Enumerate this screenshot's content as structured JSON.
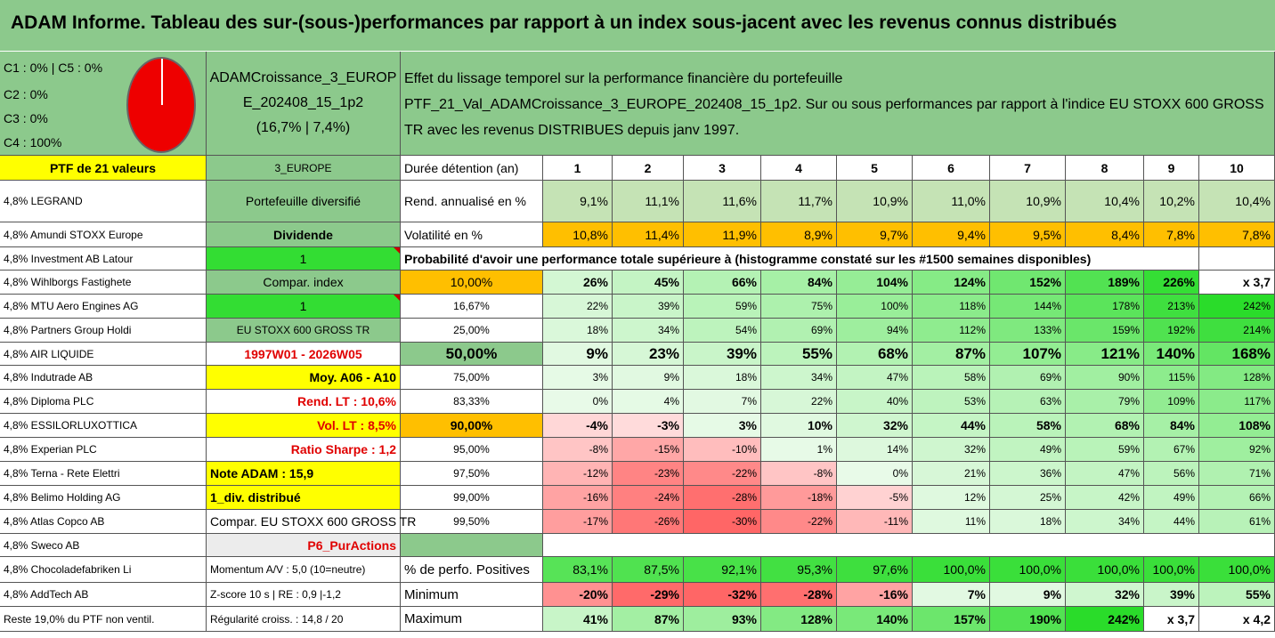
{
  "title": "ADAM Informe. Tableau des sur-(sous-)performances par rapport à un index sous-jacent avec les revenus connus distribués",
  "legend_lines": [
    "C1 : 0% | C5 : 0%",
    "C2 : 0%",
    "C3 : 0%",
    "C4 : 100%"
  ],
  "fund": {
    "name_line1": "ADAMCroissance_3_EUROP",
    "name_line2": "E_202408_15_1p2",
    "name_line3": "(16,7% | 7,4%)"
  },
  "description": {
    "line1": "Effet du lissage temporel sur la performance financière du portefeuille",
    "line2": "PTF_21_Val_ADAMCroissance_3_EUROPE_202408_15_1p2. Sur ou sous performances par rapport à l'indice EU STOXX 600 GROSS",
    "line3": "TR avec les revenus DISTRIBUES depuis janv 1997."
  },
  "ptf_label": "PTF de 21 valeurs",
  "region": "3_EUROPE",
  "holdings": [
    "4,8% LEGRAND",
    "4,8% Amundi STOXX Europe",
    "4,8% Investment AB Latour",
    "4,8% Wihlborgs Fastighete",
    "4,8% MTU Aero Engines AG",
    "4,8% Partners Group Holdi",
    "4,8% AIR LIQUIDE",
    "4,8% Indutrade AB",
    "4,8% Diploma PLC",
    "4,8% ESSILORLUXOTTICA",
    "4,8% Experian PLC",
    "4,8% Terna - Rete Elettri",
    "4,8% Belimo Holding AG",
    "4,8% Atlas Copco AB",
    "4,8% Sweco AB",
    "4,8% Chocoladefabriken Li",
    "4,8% AddTech AB",
    "Reste 19,0% du PTF non ventil."
  ],
  "info_col": [
    "Portefeuille diversifié",
    "Dividende",
    "1",
    "Compar. index",
    "1",
    "EU STOXX 600 GROSS TR",
    "1997W01 - 2026W05",
    "Moy. A06 - A10",
    "Rend. LT : 10,6%",
    "Vol. LT : 8,5%",
    "Ratio Sharpe : 1,2",
    "Note ADAM : 15,9",
    "1_div. distribué",
    "Compar. EU STOXX 600 GROSS TR",
    "P6_PurActions",
    "Momentum A/V : 5,0 (10=neutre)",
    "Z-score 10 s | RE : 0,9 |-1,2",
    "Régularité croiss. : 14,8 / 20"
  ],
  "duration_label": "Durée détention (an)",
  "years": [
    "1",
    "2",
    "3",
    "4",
    "5",
    "6",
    "7",
    "8",
    "9",
    "10"
  ],
  "rend_label": "Rend. annualisé en %",
  "rend": [
    "9,1%",
    "11,1%",
    "11,6%",
    "11,7%",
    "10,9%",
    "11,0%",
    "10,9%",
    "10,4%",
    "10,2%",
    "10,4%"
  ],
  "vol_label": "Volatilité en %",
  "vol": [
    "10,8%",
    "11,4%",
    "11,9%",
    "8,9%",
    "9,7%",
    "9,4%",
    "9,5%",
    "8,4%",
    "7,8%",
    "7,8%"
  ],
  "prob_label": "Probabilité d'avoir une performance totale supérieure à (histogramme constaté sur les #1500 semaines disponibles)",
  "prob_rows": [
    {
      "p": "10,00%",
      "v": [
        "26%",
        "45%",
        "66%",
        "84%",
        "104%",
        "124%",
        "152%",
        "189%",
        "226%",
        "x 3,7"
      ]
    },
    {
      "p": "16,67%",
      "v": [
        "22%",
        "39%",
        "59%",
        "75%",
        "100%",
        "118%",
        "144%",
        "178%",
        "213%",
        "242%"
      ]
    },
    {
      "p": "25,00%",
      "v": [
        "18%",
        "34%",
        "54%",
        "69%",
        "94%",
        "112%",
        "133%",
        "159%",
        "192%",
        "214%"
      ]
    },
    {
      "p": "50,00%",
      "v": [
        "9%",
        "23%",
        "39%",
        "55%",
        "68%",
        "87%",
        "107%",
        "121%",
        "140%",
        "168%"
      ]
    },
    {
      "p": "75,00%",
      "v": [
        "3%",
        "9%",
        "18%",
        "34%",
        "47%",
        "58%",
        "69%",
        "90%",
        "115%",
        "128%"
      ]
    },
    {
      "p": "83,33%",
      "v": [
        "0%",
        "4%",
        "7%",
        "22%",
        "40%",
        "53%",
        "63%",
        "79%",
        "109%",
        "117%"
      ]
    },
    {
      "p": "90,00%",
      "v": [
        "-4%",
        "-3%",
        "3%",
        "10%",
        "32%",
        "44%",
        "58%",
        "68%",
        "84%",
        "108%"
      ]
    },
    {
      "p": "95,00%",
      "v": [
        "-8%",
        "-15%",
        "-10%",
        "1%",
        "14%",
        "32%",
        "49%",
        "59%",
        "67%",
        "92%"
      ]
    },
    {
      "p": "97,50%",
      "v": [
        "-12%",
        "-23%",
        "-22%",
        "-8%",
        "0%",
        "21%",
        "36%",
        "47%",
        "56%",
        "71%"
      ]
    },
    {
      "p": "99,00%",
      "v": [
        "-16%",
        "-24%",
        "-28%",
        "-18%",
        "-5%",
        "12%",
        "25%",
        "42%",
        "49%",
        "66%"
      ]
    },
    {
      "p": "99,50%",
      "v": [
        "-17%",
        "-26%",
        "-30%",
        "-22%",
        "-11%",
        "11%",
        "18%",
        "34%",
        "44%",
        "61%"
      ]
    }
  ],
  "pos_label": "% de perfo. Positives",
  "pos": [
    "83,1%",
    "87,5%",
    "92,1%",
    "95,3%",
    "97,6%",
    "100,0%",
    "100,0%",
    "100,0%",
    "100,0%",
    "100,0%"
  ],
  "min_label": "Minimum",
  "min": [
    "-20%",
    "-29%",
    "-32%",
    "-28%",
    "-16%",
    "7%",
    "9%",
    "32%",
    "39%",
    "55%"
  ],
  "max_label": "Maximum",
  "max": [
    "41%",
    "87%",
    "93%",
    "128%",
    "140%",
    "157%",
    "190%",
    "242%",
    "x 3,7",
    "x 4,2"
  ],
  "colors": {
    "header_green": "#8cc98c",
    "yellow": "#ffff00",
    "bright_green": "#33dd33",
    "orange": "#ffbf00",
    "pie_red": "#ee0000"
  }
}
